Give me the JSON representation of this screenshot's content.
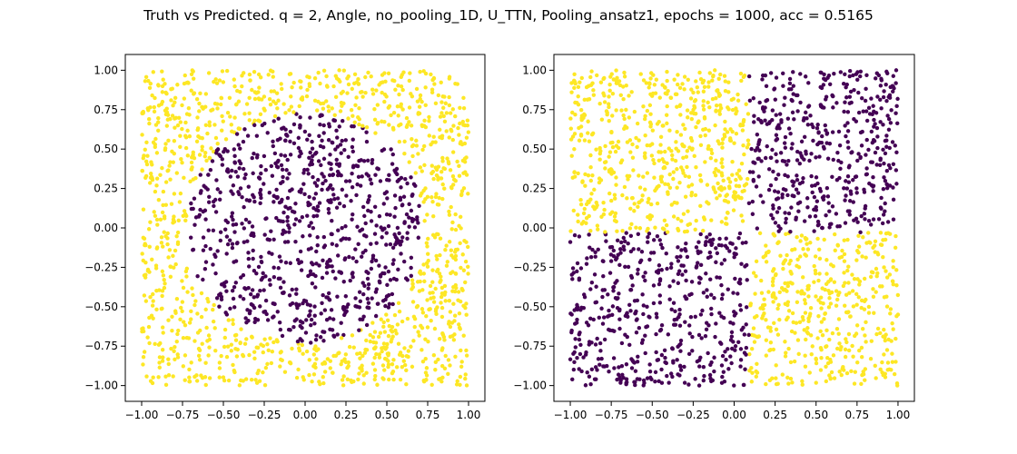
{
  "figure": {
    "title": "Truth vs Predicted. q = 2, Angle, no_pooling_1D, U_TTN, Pooling_ansatz1, epochs = 1000, acc = 0.5165"
  },
  "chart_data": [
    {
      "type": "scatter",
      "title": "",
      "xlabel": "",
      "ylabel": "",
      "xlim": [
        -1.1,
        1.1
      ],
      "ylim": [
        -1.1,
        1.1
      ],
      "xticks": [
        "−1.00",
        "−0.75",
        "−0.50",
        "−0.25",
        "0.00",
        "0.25",
        "0.50",
        "0.75",
        "1.00"
      ],
      "yticks": [
        "1.00",
        "0.75",
        "0.50",
        "0.25",
        "0.00",
        "−0.25",
        "−0.50",
        "−0.75",
        "−1.00"
      ],
      "grid": false,
      "colors": {
        "class_0": "#440154",
        "class_1": "#fde725"
      },
      "rule": "circle",
      "circle_radius": 0.73,
      "circle_center": [
        0.0,
        0.0
      ],
      "n_points": 2000,
      "x_range": [
        -1.0,
        1.0
      ],
      "y_range": [
        -1.0,
        1.0
      ]
    },
    {
      "type": "scatter",
      "title": "",
      "xlabel": "",
      "ylabel": "",
      "xlim": [
        -1.1,
        1.1
      ],
      "ylim": [
        -1.1,
        1.1
      ],
      "xticks": [
        "−1.00",
        "−0.75",
        "−0.50",
        "−0.25",
        "0.00",
        "0.25",
        "0.50",
        "0.75",
        "1.00"
      ],
      "yticks": [
        "1.00",
        "0.75",
        "0.50",
        "0.25",
        "0.00",
        "−0.25",
        "−0.50",
        "−0.75",
        "−1.00"
      ],
      "grid": false,
      "colors": {
        "class_0": "#440154",
        "class_1": "#fde725"
      },
      "rule": "quadrants",
      "x_split": 0.09,
      "y_split": -0.03,
      "n_points": 2000,
      "x_range": [
        -1.0,
        1.0
      ],
      "y_range": [
        -1.0,
        1.0
      ]
    }
  ]
}
